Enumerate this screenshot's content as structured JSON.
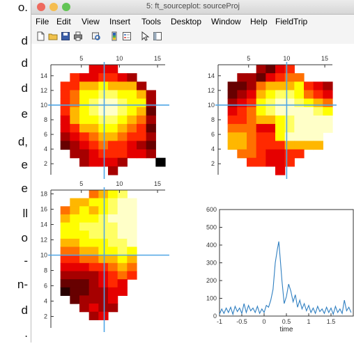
{
  "side_text": [
    "o.",
    "d",
    "d",
    "d",
    "e",
    "d,",
    "e",
    "e",
    "ll",
    "o",
    "-",
    "n-",
    "d",
    "."
  ],
  "window": {
    "title": "5: ft_sourceplot: sourceProj",
    "traffic_lights": [
      "#ee6a5e",
      "#f5bd4f",
      "#61c454"
    ]
  },
  "menu": [
    "File",
    "Edit",
    "View",
    "Insert",
    "Tools",
    "Desktop",
    "Window",
    "Help",
    "FieldTrip"
  ],
  "toolbar_icons": [
    "new-file-icon",
    "open-folder-icon",
    "save-icon",
    "print-icon",
    "print-preview-icon",
    "insert-colorbar-icon",
    "insert-legend-icon",
    "pointer-icon",
    "property-editor-icon"
  ],
  "colors": {
    "crosshair": "#4fa6e6",
    "line_series": "#2f7fc1",
    "accent": "#2f7fc1"
  },
  "chart_data": [
    {
      "type": "heatmap",
      "title": "",
      "x_ticks": [
        "5",
        "10",
        "15"
      ],
      "y_ticks": [
        "2",
        "4",
        "6",
        "8",
        "10",
        "12",
        "14"
      ],
      "crosshair": {
        "x": 8,
        "y": 10
      },
      "rows": [
        "....333.....",
        "..4334432...",
        ".446676662..",
        ".4577887762.",
        ".4578998772.",
        ".4678998761.",
        ".3677887652.",
        ".3466776541.",
        ".2345665442.",
        ".1234544321.",
        "..223444332.",
        "...23332...",
        "......2....."
      ]
    },
    {
      "type": "heatmap",
      "title": "",
      "x_ticks": [
        "5",
        "10",
        "15"
      ],
      "y_ticks": [
        "2",
        "4",
        "6",
        "8",
        "10",
        "12",
        "14"
      ],
      "crosshair": {
        "x": 10,
        "y": 10
      },
      "rows": [
        "....2134....",
        "..2213455...",
        ".11256667432",
        ".12367887543",
        ".23478998765",
        ".34578999987",
        ".44566789999",
        ".55533789999",
        ".6654479999.",
        ".6654446666.",
        "..5543344...",
        "...44334....",
        "......3....."
      ]
    },
    {
      "type": "heatmap",
      "title": "",
      "x_ticks": [
        "5",
        "10",
        "15"
      ],
      "y_ticks": [
        "2",
        "4",
        "6",
        "8",
        "10",
        "12",
        "14",
        "16",
        "18"
      ],
      "crosshair": {
        "x": 8,
        "y": 10
      },
      "rows": [
        "....5678....",
        "..6677899...",
        ".56767899...",
        ".67778999...",
        ".77888899...",
        ".77788899...",
        ".66777889...",
        ".55667787...",
        ".44556676...",
        ".33344565...",
        ".22223454...",
        ".1112343....",
        ".0112233....",
        "..12223.....",
        "...2322.....",
        "....23......",
        "............"
      ]
    },
    {
      "type": "line",
      "title": "",
      "xlabel": "time",
      "ylabel": "",
      "xlim": [
        -1,
        2
      ],
      "ylim": [
        0,
        600
      ],
      "x_ticks": [
        "-1",
        "-0.5",
        "0",
        "0.5",
        "1",
        "1.5"
      ],
      "y_ticks": [
        "0",
        "100",
        "200",
        "300",
        "400",
        "500",
        "600"
      ],
      "series": [
        {
          "x": [
            -1,
            -0.95,
            -0.9,
            -0.85,
            -0.8,
            -0.75,
            -0.7,
            -0.65,
            -0.6,
            -0.55,
            -0.5,
            -0.45,
            -0.4,
            -0.35,
            -0.3,
            -0.25,
            -0.2,
            -0.15,
            -0.1,
            -0.05,
            0,
            0.05,
            0.1,
            0.15,
            0.2,
            0.25,
            0.3,
            0.33,
            0.36,
            0.4,
            0.45,
            0.5,
            0.55,
            0.6,
            0.65,
            0.7,
            0.75,
            0.8,
            0.85,
            0.9,
            0.95,
            1.0,
            1.05,
            1.1,
            1.15,
            1.2,
            1.25,
            1.3,
            1.35,
            1.4,
            1.45,
            1.5,
            1.55,
            1.6,
            1.65,
            1.7,
            1.75,
            1.8,
            1.85,
            1.9,
            1.95
          ],
          "y": [
            10,
            40,
            15,
            45,
            20,
            50,
            10,
            55,
            25,
            45,
            15,
            70,
            20,
            60,
            30,
            45,
            20,
            55,
            15,
            40,
            20,
            60,
            50,
            90,
            150,
            300,
            380,
            420,
            330,
            200,
            70,
            110,
            180,
            140,
            80,
            120,
            50,
            90,
            40,
            70,
            30,
            60,
            20,
            45,
            15,
            55,
            25,
            40,
            15,
            50,
            20,
            45,
            10,
            55,
            20,
            40,
            15,
            90,
            30,
            50,
            20
          ]
        }
      ]
    }
  ]
}
